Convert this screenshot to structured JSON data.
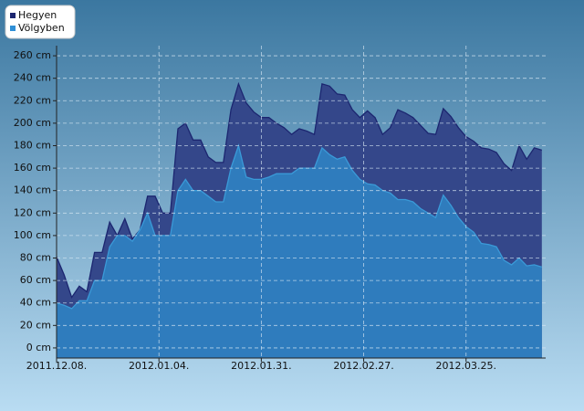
{
  "chart_data": {
    "type": "area",
    "x": [
      "2011.12.08.",
      "2011.12.10.",
      "2011.12.12.",
      "2011.12.14.",
      "2011.12.16.",
      "2011.12.18.",
      "2011.12.20.",
      "2011.12.22.",
      "2011.12.24.",
      "2011.12.26.",
      "2011.12.28.",
      "2011.12.30.",
      "2012.01.01.",
      "2012.01.03.",
      "2012.01.05.",
      "2012.01.07.",
      "2012.01.09.",
      "2012.01.11.",
      "2012.01.13.",
      "2012.01.15.",
      "2012.01.17.",
      "2012.01.19.",
      "2012.01.21.",
      "2012.01.23.",
      "2012.01.25.",
      "2012.01.27.",
      "2012.01.29.",
      "2012.01.31.",
      "2012.02.02.",
      "2012.02.04.",
      "2012.02.06.",
      "2012.02.08.",
      "2012.02.10.",
      "2012.02.12.",
      "2012.02.14.",
      "2012.02.16.",
      "2012.02.18.",
      "2012.02.20.",
      "2012.02.22.",
      "2012.02.24.",
      "2012.02.26.",
      "2012.02.28.",
      "2012.03.01.",
      "2012.03.03.",
      "2012.03.05.",
      "2012.03.07.",
      "2012.03.09.",
      "2012.03.11.",
      "2012.03.13.",
      "2012.03.15.",
      "2012.03.17.",
      "2012.03.19.",
      "2012.03.21.",
      "2012.03.23.",
      "2012.03.25.",
      "2012.03.27.",
      "2012.03.29.",
      "2012.03.31.",
      "2012.04.02.",
      "2012.04.04.",
      "2012.04.06.",
      "2012.04.08.",
      "2012.04.10.",
      "2012.04.12.",
      "2012.04.14."
    ],
    "series": [
      {
        "name": "Hegyen",
        "color": "#1c2670",
        "fill": "#34478a",
        "values": [
          81,
          65,
          45,
          55,
          50,
          85,
          85,
          112,
          100,
          115,
          97,
          105,
          135,
          135,
          120,
          120,
          195,
          200,
          185,
          185,
          170,
          165,
          165,
          212,
          235,
          218,
          210,
          205,
          205,
          200,
          196,
          190,
          195,
          193,
          190,
          235,
          233,
          226,
          225,
          212,
          205,
          211,
          205,
          190,
          196,
          212,
          209,
          205,
          198,
          191,
          190,
          213,
          206,
          196,
          188,
          184,
          178,
          177,
          174,
          164,
          158,
          180,
          168,
          178,
          176
        ]
      },
      {
        "name": "Völgyben",
        "color": "#3a9ad8",
        "fill": "#2f7cbd",
        "values": [
          40,
          38,
          35,
          42,
          42,
          60,
          60,
          90,
          100,
          100,
          95,
          105,
          120,
          100,
          100,
          100,
          140,
          150,
          140,
          140,
          135,
          130,
          130,
          160,
          180,
          152,
          150,
          150,
          152,
          155,
          155,
          155,
          160,
          160,
          160,
          178,
          172,
          168,
          170,
          158,
          150,
          146,
          145,
          140,
          138,
          132,
          132,
          130,
          124,
          120,
          116,
          136,
          127,
          116,
          108,
          103,
          93,
          92,
          90,
          78,
          74,
          80,
          73,
          74,
          72
        ]
      }
    ],
    "xlim": [
      "2011.12.08.",
      "2012.04.15."
    ],
    "xticks": [
      "2011.12.08.",
      "2012.01.04.",
      "2012.01.31.",
      "2012.02.27.",
      "2012.03.25."
    ],
    "ylim": [
      -9,
      269
    ],
    "yticks": [
      {
        "value": 0,
        "label": "0 cm"
      },
      {
        "value": 20,
        "label": "20 cm"
      },
      {
        "value": 40,
        "label": "40 cm"
      },
      {
        "value": 60,
        "label": "60 cm"
      },
      {
        "value": 80,
        "label": "80 cm"
      },
      {
        "value": 100,
        "label": "100 cm"
      },
      {
        "value": 120,
        "label": "120 cm"
      },
      {
        "value": 140,
        "label": "140 cm"
      },
      {
        "value": 160,
        "label": "160 cm"
      },
      {
        "value": 180,
        "label": "180 cm"
      },
      {
        "value": 200,
        "label": "200 cm"
      },
      {
        "value": 220,
        "label": "220 cm"
      },
      {
        "value": 240,
        "label": "240 cm"
      },
      {
        "value": 260,
        "label": "260 cm"
      }
    ],
    "grid": true,
    "legend": "top-left"
  }
}
